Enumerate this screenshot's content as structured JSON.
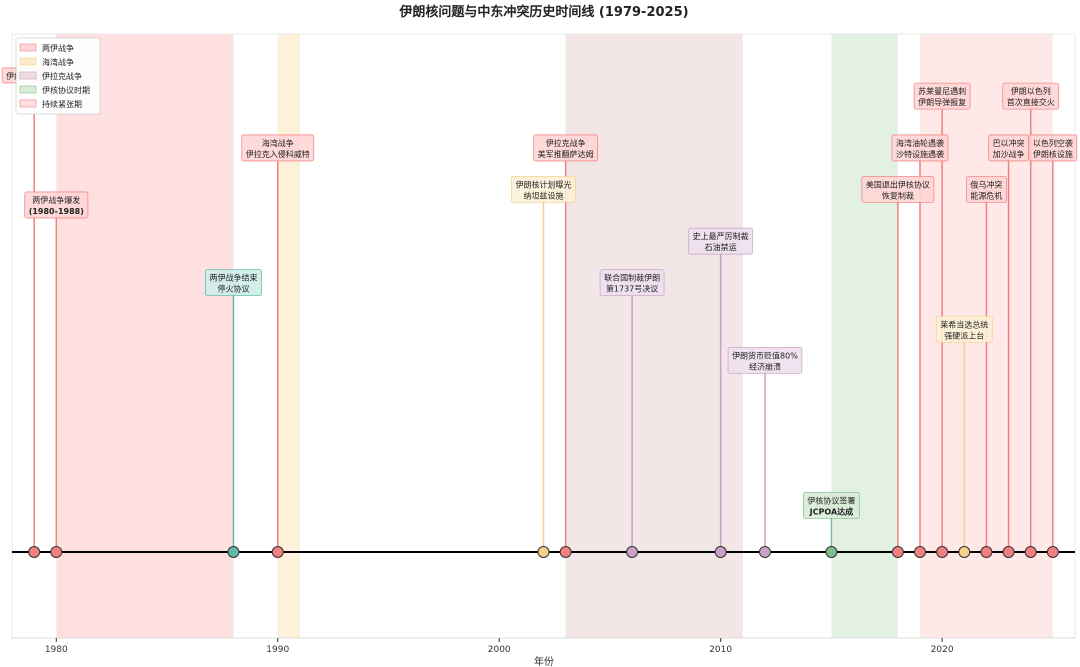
{
  "chart_data": {
    "type": "timeline",
    "title": "伊朗核问题与中东冲突历史时间线 (1979-2025)",
    "xlabel": "年份",
    "xlim": [
      1978,
      2026
    ],
    "xticks": [
      1980,
      1990,
      2000,
      2010,
      2020
    ],
    "categories": [
      {
        "id": "war",
        "label": "两伊战争",
        "color": "#f08080",
        "fill": "#ffd6d6"
      },
      {
        "id": "gulf",
        "label": "海湾战争",
        "color": "#f5d08a",
        "fill": "#fdeccc"
      },
      {
        "id": "iraq",
        "label": "伊拉克战争",
        "color": "#c8a2c8",
        "fill": "#eedede"
      },
      {
        "id": "jcpoa",
        "label": "伊核协议时期",
        "color": "#7fbf8f",
        "fill": "#d8ecd8"
      },
      {
        "id": "tension",
        "label": "持续紧张期",
        "color": "#f08080",
        "fill": "#ffe0e0"
      }
    ],
    "periods": [
      {
        "category": "war",
        "start": 1980,
        "end": 1988
      },
      {
        "category": "gulf",
        "start": 1990,
        "end": 1991
      },
      {
        "category": "iraq",
        "start": 2003,
        "end": 2011
      },
      {
        "category": "jcpoa",
        "start": 2015,
        "end": 2018
      },
      {
        "category": "tension",
        "start": 2019,
        "end": 2025
      }
    ],
    "events": [
      {
        "year": 1979,
        "level": 0.92,
        "lines": [
          "伊朗伊斯兰革命"
        ],
        "color": "#f08080",
        "box": "#ffd6d6"
      },
      {
        "year": 1980,
        "level": 0.67,
        "lines": [
          "两伊战争爆发",
          "(1980-1988)"
        ],
        "color": "#f08080",
        "box": "#ffd6d6",
        "bold_second": true
      },
      {
        "year": 1988,
        "level": 0.52,
        "lines": [
          "两伊战争结束",
          "停火协议"
        ],
        "color": "#5fb8a8",
        "box": "#cfeee8"
      },
      {
        "year": 1990,
        "level": 0.78,
        "lines": [
          "海湾战争",
          "伊拉克入侵科威特"
        ],
        "color": "#f08080",
        "box": "#ffd6d6"
      },
      {
        "year": 2002,
        "level": 0.7,
        "lines": [
          "伊朗核计划曝光",
          "纳坦兹设施"
        ],
        "color": "#f5d08a",
        "box": "#fdf1d8"
      },
      {
        "year": 2003,
        "level": 0.78,
        "lines": [
          "伊拉克战争",
          "美军推翻萨达姆"
        ],
        "color": "#f08080",
        "box": "#ffd6d6"
      },
      {
        "year": 2006,
        "level": 0.52,
        "lines": [
          "联合国制裁伊朗",
          "第1737号决议"
        ],
        "color": "#c8a2c8",
        "box": "#efe0ef"
      },
      {
        "year": 2010,
        "level": 0.6,
        "lines": [
          "史上最严厉制裁",
          "石油禁运"
        ],
        "color": "#c8a2c8",
        "box": "#efe0ef"
      },
      {
        "year": 2012,
        "level": 0.37,
        "lines": [
          "伊朗货币贬值80%",
          "经济崩溃"
        ],
        "color": "#c8a2c8",
        "box": "#efe0ef"
      },
      {
        "year": 2015,
        "level": 0.09,
        "lines": [
          "伊核协议签署",
          "JCPOA达成"
        ],
        "color": "#7fbf8f",
        "box": "#d8ecd8",
        "bold_second": true
      },
      {
        "year": 2018,
        "level": 0.7,
        "lines": [
          "美国退出伊核协议",
          "恢复制裁"
        ],
        "color": "#f08080",
        "box": "#ffd6d6"
      },
      {
        "year": 2019,
        "level": 0.78,
        "lines": [
          "海湾油轮遇袭",
          "沙特设施遇袭"
        ],
        "color": "#f08080",
        "box": "#ffd6d6"
      },
      {
        "year": 2020,
        "level": 0.88,
        "lines": [
          "苏莱曼尼遇刺",
          "伊朗导弹报复"
        ],
        "color": "#f08080",
        "box": "#ffd6d6"
      },
      {
        "year": 2021,
        "level": 0.43,
        "lines": [
          "莱希当选总统",
          "强硬派上台"
        ],
        "color": "#f5d08a",
        "box": "#fdf1d8"
      },
      {
        "year": 2022,
        "level": 0.7,
        "lines": [
          "俄乌冲突",
          "能源危机"
        ],
        "color": "#f08080",
        "box": "#ffd6d6"
      },
      {
        "year": 2023,
        "level": 0.78,
        "lines": [
          "巴以冲突",
          "加沙战争"
        ],
        "color": "#f08080",
        "box": "#ffd6d6"
      },
      {
        "year": 2024,
        "level": 0.88,
        "lines": [
          "伊朗以色列",
          "首次直接交火"
        ],
        "color": "#f08080",
        "box": "#ffd6d6"
      },
      {
        "year": 2025,
        "level": 0.78,
        "lines": [
          "以色列空袭",
          "伊朗核设施"
        ],
        "color": "#f08080",
        "box": "#ffd6d6"
      }
    ]
  }
}
